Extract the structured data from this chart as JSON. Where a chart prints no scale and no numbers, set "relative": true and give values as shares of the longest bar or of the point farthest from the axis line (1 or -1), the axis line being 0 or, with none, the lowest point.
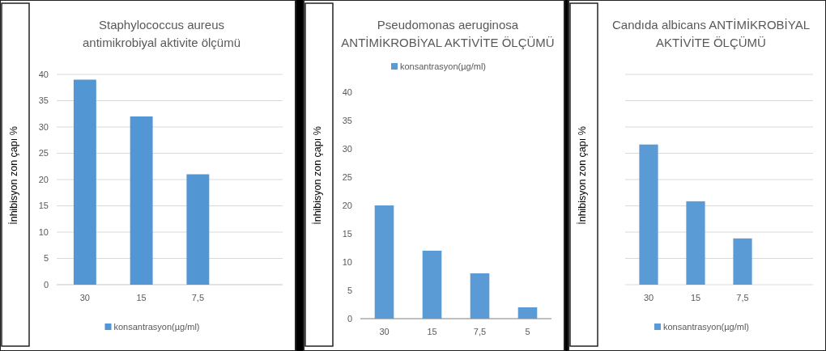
{
  "chart_data": [
    {
      "type": "bar",
      "title": "Staphylococcus aureus antimikrobiyal aktivite ölçümü",
      "ylabel": "İnhibisyon zon çapı %",
      "categories": [
        "30",
        "15",
        "7,5",
        null
      ],
      "series": [
        {
          "name": "konsantrasyon(µg/ml)",
          "color": "#5296d3",
          "values": [
            39,
            32,
            21,
            null
          ]
        }
      ],
      "ylim": [
        0,
        40
      ],
      "yticks": [
        0,
        5,
        10,
        15,
        20,
        25,
        30,
        35,
        40
      ],
      "grid": "y",
      "legend": "bottom"
    },
    {
      "type": "bar",
      "title": "Pseudomonas aeruginosa ANTİMİKROBİYAL AKTİVİTE ÖLÇÜMÜ",
      "ylabel": "İnhibisyon zon çapı %",
      "categories": [
        "30",
        "15",
        "7,5",
        "5"
      ],
      "series": [
        {
          "name": "konsantrasyon(µg/ml)",
          "color": "#5b9bd5",
          "values": [
            20,
            12,
            8,
            2
          ]
        }
      ],
      "ylim": [
        0,
        40
      ],
      "yticks": [
        0,
        5,
        10,
        15,
        20,
        25,
        30,
        35,
        40
      ],
      "grid": false,
      "legend": "top"
    },
    {
      "type": "bar",
      "title": "Candıda albicans ANTİMİKROBİYAL AKTİVİTE ÖLÇÜMÜ",
      "ylabel": "İnhibisyon zon çapı %",
      "categories": [
        "30",
        "15",
        "7,5",
        null
      ],
      "series": [
        {
          "name": "konsantrasyon(µg/ml)",
          "color": "#5b9bd5",
          "values": [
            1,
            0.595,
            0.33,
            null
          ]
        }
      ],
      "relative": true,
      "grid": true,
      "legend": "bottom"
    }
  ]
}
